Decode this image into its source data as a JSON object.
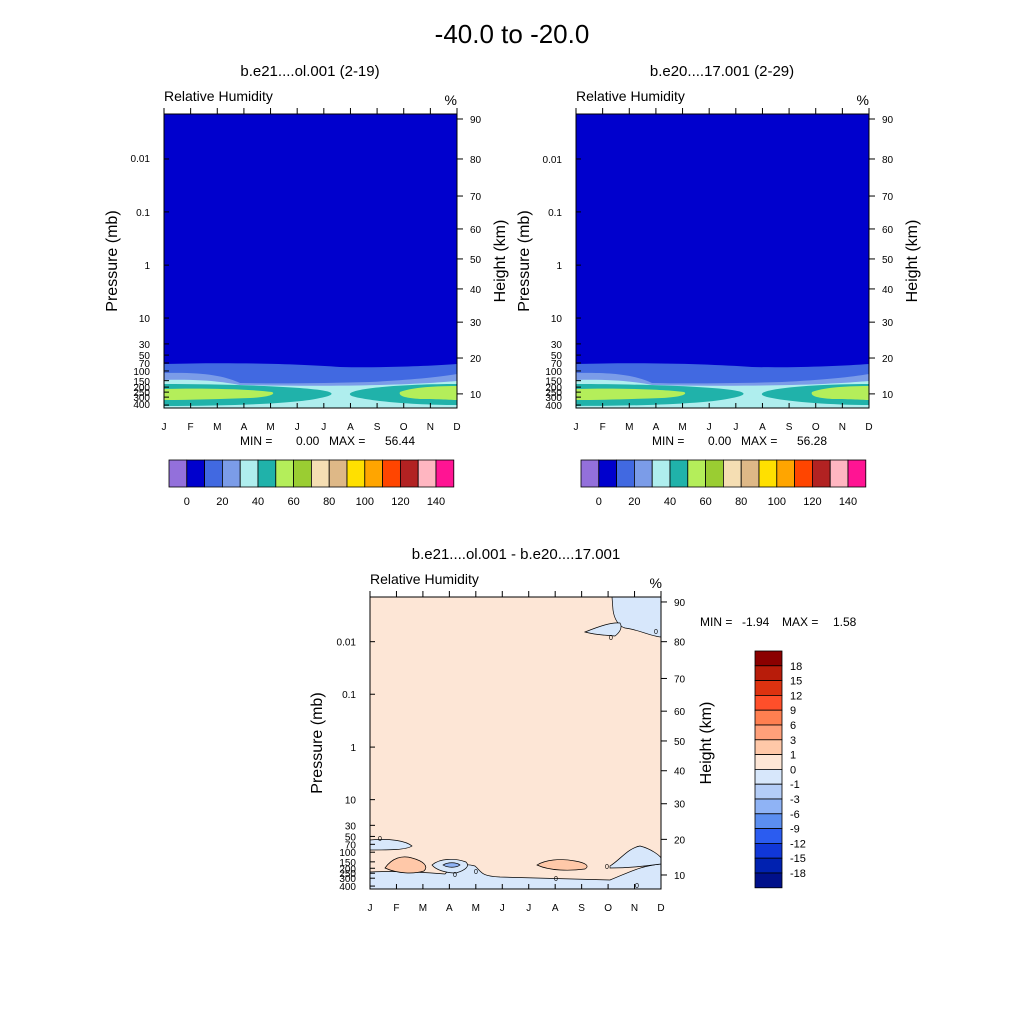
{
  "main_title": "-40.0 to -20.0",
  "chart_data": [
    {
      "type": "heatmap",
      "title": "b.e21....ol.001 (2-19)",
      "left_label": "Relative Humidity",
      "right_label": "%",
      "ylabel": "Pressure (mb)",
      "y2label": "Height (km)",
      "x_tick_labels": [
        "J",
        "F",
        "M",
        "A",
        "M",
        "J",
        "J",
        "A",
        "S",
        "O",
        "N",
        "D"
      ],
      "y_tick_labels": [
        "0.01",
        "0.1",
        "1",
        "10",
        "30",
        "50",
        "70",
        "100",
        "150",
        "200",
        "250",
        "300",
        "400"
      ],
      "y2_tick_labels": [
        "90",
        "80",
        "70",
        "60",
        "50",
        "40",
        "30",
        "20",
        "10"
      ],
      "min_label": "MIN =",
      "min_value": "0.00",
      "max_label": "MAX =",
      "max_value": "56.44",
      "colorbar_labels": [
        "0",
        "20",
        "40",
        "60",
        "80",
        "100",
        "120",
        "140"
      ],
      "colorbar_colors": [
        "#9370db",
        "#0000cd",
        "#4169e1",
        "#7b9ce8",
        "#afeeee",
        "#20b2aa",
        "#b4ee5a",
        "#9acd32",
        "#f5deb3",
        "#deb887",
        "#ffe000",
        "#ffa500",
        "#ff4500",
        "#b22222",
        "#ffb6c1",
        "#ff1493"
      ],
      "field_colors": {
        "background": "#0000cd",
        "band1": "#4169e1",
        "band2": "#7b9ce8",
        "band3": "#afeeee",
        "band4": "#20b2aa",
        "band5": "#b4ee5a"
      }
    },
    {
      "type": "heatmap",
      "title": "b.e20....17.001 (2-29)",
      "left_label": "Relative Humidity",
      "right_label": "%",
      "ylabel": "Pressure (mb)",
      "y2label": "Height (km)",
      "x_tick_labels": [
        "J",
        "F",
        "M",
        "A",
        "M",
        "J",
        "J",
        "A",
        "S",
        "O",
        "N",
        "D"
      ],
      "y_tick_labels": [
        "0.01",
        "0.1",
        "1",
        "10",
        "30",
        "50",
        "70",
        "100",
        "150",
        "200",
        "250",
        "300",
        "400"
      ],
      "y2_tick_labels": [
        "90",
        "80",
        "70",
        "60",
        "50",
        "40",
        "30",
        "20",
        "10"
      ],
      "min_label": "MIN =",
      "min_value": "0.00",
      "max_label": "MAX =",
      "max_value": "56.28",
      "colorbar_labels": [
        "0",
        "20",
        "40",
        "60",
        "80",
        "100",
        "120",
        "140"
      ],
      "colorbar_colors": [
        "#9370db",
        "#0000cd",
        "#4169e1",
        "#7b9ce8",
        "#afeeee",
        "#20b2aa",
        "#b4ee5a",
        "#9acd32",
        "#f5deb3",
        "#deb887",
        "#ffe000",
        "#ffa500",
        "#ff4500",
        "#b22222",
        "#ffb6c1",
        "#ff1493"
      ],
      "field_colors": {
        "background": "#0000cd",
        "band1": "#4169e1",
        "band2": "#7b9ce8",
        "band3": "#afeeee",
        "band4": "#20b2aa",
        "band5": "#b4ee5a"
      }
    },
    {
      "type": "heatmap",
      "title": "b.e21....ol.001 - b.e20....17.001",
      "left_label": "Relative Humidity",
      "right_label": "%",
      "ylabel": "Pressure (mb)",
      "y2label": "Height (km)",
      "x_tick_labels": [
        "J",
        "F",
        "M",
        "A",
        "M",
        "J",
        "J",
        "A",
        "S",
        "O",
        "N",
        "D"
      ],
      "y_tick_labels": [
        "0.01",
        "0.1",
        "1",
        "10",
        "30",
        "50",
        "70",
        "100",
        "150",
        "200",
        "250",
        "300",
        "400"
      ],
      "y2_tick_labels": [
        "90",
        "80",
        "70",
        "60",
        "50",
        "40",
        "30",
        "20",
        "10"
      ],
      "min_label": "MIN =",
      "min_value": "-1.94",
      "max_label": "MAX =",
      "max_value": "1.58",
      "contour_label": "0",
      "colorbar_labels": [
        "18",
        "15",
        "12",
        "9",
        "6",
        "3",
        "1",
        "0",
        "-1",
        "-3",
        "-6",
        "-9",
        "-12",
        "-15",
        "-18"
      ],
      "colorbar_colors": [
        "#8b0000",
        "#b81c0a",
        "#dd3210",
        "#ff4f2a",
        "#ff7f50",
        "#ffa07a",
        "#ffc8a8",
        "#fde6d6",
        "#d7e7fb",
        "#b4cdf7",
        "#8fb3f5",
        "#5b8ef0",
        "#2b5cf0",
        "#1037d8",
        "#0021b0",
        "#00108a"
      ],
      "field_colors": {
        "background": "#fde6d6",
        "negative": "#d7e7fb",
        "positive": "#ffc8a8",
        "strong_negative": "#8fb3f5"
      }
    }
  ]
}
